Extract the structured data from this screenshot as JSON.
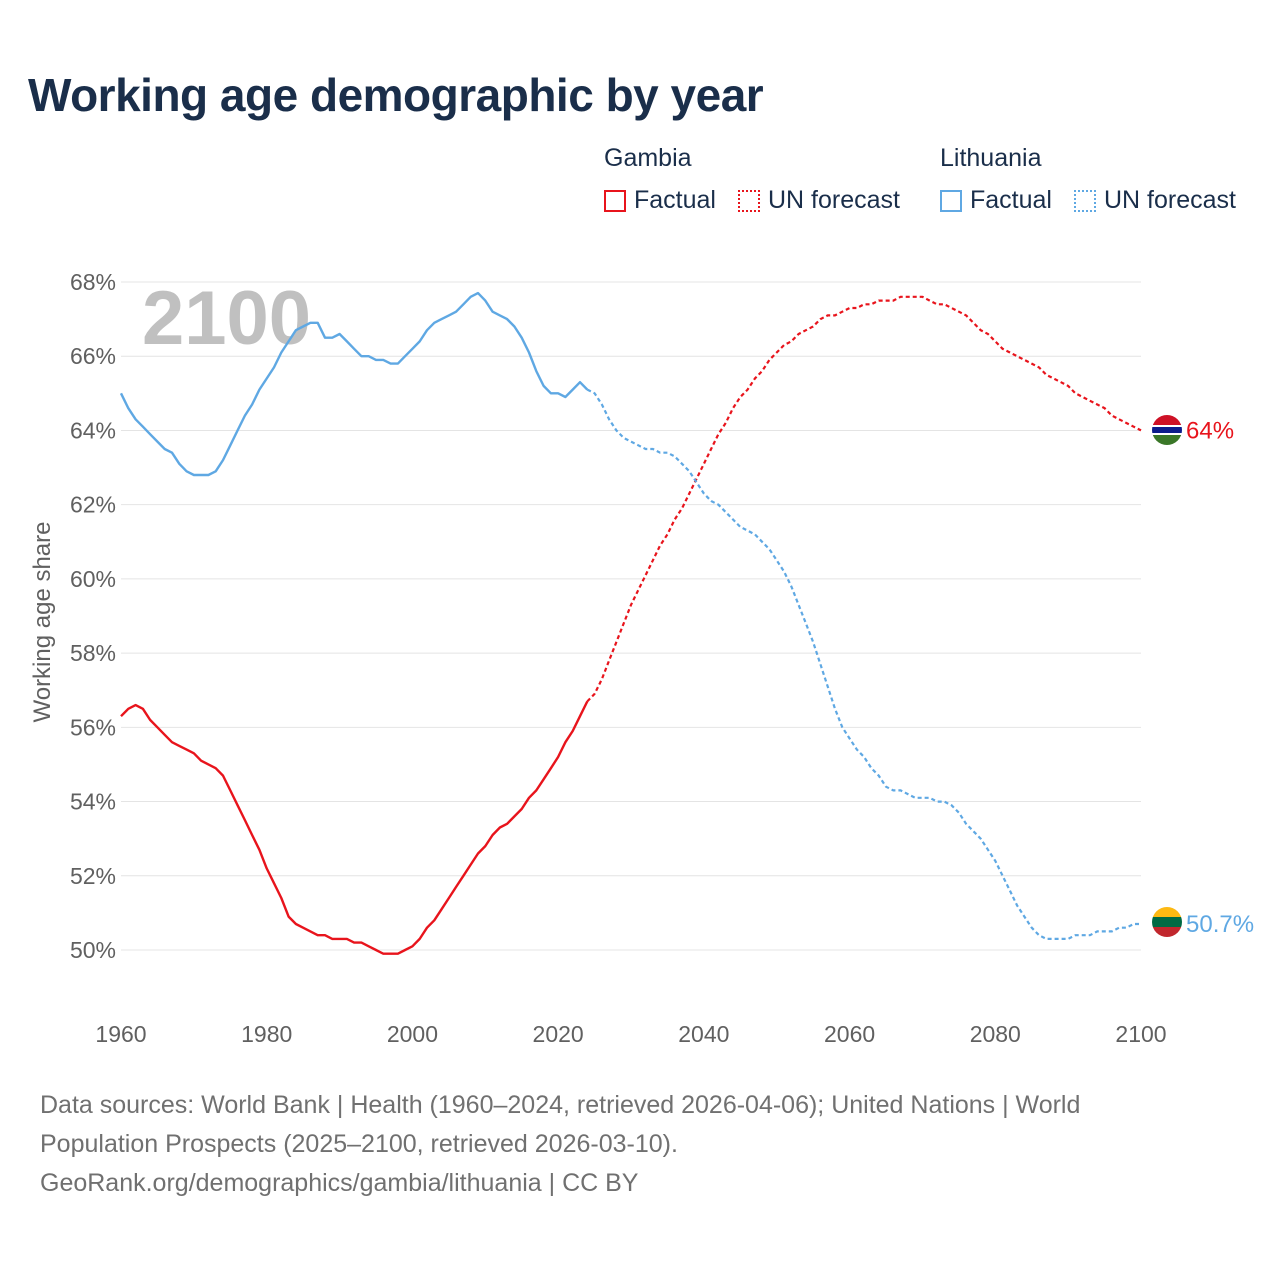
{
  "title": "Working age demographic by year",
  "legend": {
    "groups": [
      {
        "name": "Gambia",
        "factual_label": "Factual",
        "forecast_label": "UN forecast",
        "color": "#e8141c"
      },
      {
        "name": "Lithuania",
        "factual_label": "Factual",
        "forecast_label": "UN forecast",
        "color": "#5fa8e3"
      }
    ]
  },
  "year_watermark": "2100",
  "footer": {
    "sources": "Data sources: World Bank | Health (1960–2024, retrieved 2026-04-06); United Nations | World Population Prospects (2025–2100, retrieved 2026-03-10).",
    "credit": "GeoRank.org/demographics/gambia/lithuania | CC BY"
  },
  "chart_data": {
    "type": "line",
    "title": "Working age demographic by year",
    "xlabel": "",
    "ylabel": "Working age share",
    "xlim": [
      1960,
      2100
    ],
    "ylim": [
      48.5,
      68
    ],
    "x_ticks": [
      1960,
      1980,
      2000,
      2020,
      2040,
      2060,
      2080,
      2100
    ],
    "x_tick_labels": [
      "1960",
      "1980",
      "2000",
      "2020",
      "2040",
      "2060",
      "2080",
      "2100"
    ],
    "y_ticks": [
      50,
      52,
      54,
      56,
      58,
      60,
      62,
      64,
      66,
      68
    ],
    "y_tick_labels": [
      "50%",
      "52%",
      "54%",
      "56%",
      "58%",
      "60%",
      "62%",
      "64%",
      "66%",
      "68%"
    ],
    "grid": true,
    "series": [
      {
        "name": "Gambia",
        "color": "#e8141c",
        "end_label": "64%",
        "flag": "gambia",
        "factual": [
          [
            1960,
            56.3
          ],
          [
            1961,
            56.5
          ],
          [
            1962,
            56.6
          ],
          [
            1963,
            56.5
          ],
          [
            1964,
            56.2
          ],
          [
            1965,
            56.0
          ],
          [
            1966,
            55.8
          ],
          [
            1967,
            55.6
          ],
          [
            1968,
            55.5
          ],
          [
            1969,
            55.4
          ],
          [
            1970,
            55.3
          ],
          [
            1971,
            55.1
          ],
          [
            1972,
            55.0
          ],
          [
            1973,
            54.9
          ],
          [
            1974,
            54.7
          ],
          [
            1975,
            54.3
          ],
          [
            1976,
            53.9
          ],
          [
            1977,
            53.5
          ],
          [
            1978,
            53.1
          ],
          [
            1979,
            52.7
          ],
          [
            1980,
            52.2
          ],
          [
            1981,
            51.8
          ],
          [
            1982,
            51.4
          ],
          [
            1983,
            50.9
          ],
          [
            1984,
            50.7
          ],
          [
            1985,
            50.6
          ],
          [
            1986,
            50.5
          ],
          [
            1987,
            50.4
          ],
          [
            1988,
            50.4
          ],
          [
            1989,
            50.3
          ],
          [
            1990,
            50.3
          ],
          [
            1991,
            50.3
          ],
          [
            1992,
            50.2
          ],
          [
            1993,
            50.2
          ],
          [
            1994,
            50.1
          ],
          [
            1995,
            50.0
          ],
          [
            1996,
            49.9
          ],
          [
            1997,
            49.9
          ],
          [
            1998,
            49.9
          ],
          [
            1999,
            50.0
          ],
          [
            2000,
            50.1
          ],
          [
            2001,
            50.3
          ],
          [
            2002,
            50.6
          ],
          [
            2003,
            50.8
          ],
          [
            2004,
            51.1
          ],
          [
            2005,
            51.4
          ],
          [
            2006,
            51.7
          ],
          [
            2007,
            52.0
          ],
          [
            2008,
            52.3
          ],
          [
            2009,
            52.6
          ],
          [
            2010,
            52.8
          ],
          [
            2011,
            53.1
          ],
          [
            2012,
            53.3
          ],
          [
            2013,
            53.4
          ],
          [
            2014,
            53.6
          ],
          [
            2015,
            53.8
          ],
          [
            2016,
            54.1
          ],
          [
            2017,
            54.3
          ],
          [
            2018,
            54.6
          ],
          [
            2019,
            54.9
          ],
          [
            2020,
            55.2
          ],
          [
            2021,
            55.6
          ],
          [
            2022,
            55.9
          ],
          [
            2023,
            56.3
          ],
          [
            2024,
            56.7
          ]
        ],
        "forecast": [
          [
            2024,
            56.7
          ],
          [
            2025,
            56.9
          ],
          [
            2026,
            57.3
          ],
          [
            2027,
            57.8
          ],
          [
            2028,
            58.3
          ],
          [
            2029,
            58.8
          ],
          [
            2030,
            59.3
          ],
          [
            2031,
            59.7
          ],
          [
            2032,
            60.1
          ],
          [
            2033,
            60.5
          ],
          [
            2034,
            60.9
          ],
          [
            2035,
            61.2
          ],
          [
            2036,
            61.6
          ],
          [
            2037,
            61.9
          ],
          [
            2038,
            62.3
          ],
          [
            2039,
            62.7
          ],
          [
            2040,
            63.1
          ],
          [
            2041,
            63.5
          ],
          [
            2042,
            63.9
          ],
          [
            2043,
            64.2
          ],
          [
            2044,
            64.6
          ],
          [
            2045,
            64.9
          ],
          [
            2046,
            65.1
          ],
          [
            2047,
            65.4
          ],
          [
            2048,
            65.6
          ],
          [
            2049,
            65.9
          ],
          [
            2050,
            66.1
          ],
          [
            2051,
            66.3
          ],
          [
            2052,
            66.4
          ],
          [
            2053,
            66.6
          ],
          [
            2054,
            66.7
          ],
          [
            2055,
            66.8
          ],
          [
            2056,
            67.0
          ],
          [
            2057,
            67.1
          ],
          [
            2058,
            67.1
          ],
          [
            2059,
            67.2
          ],
          [
            2060,
            67.3
          ],
          [
            2061,
            67.3
          ],
          [
            2062,
            67.4
          ],
          [
            2063,
            67.4
          ],
          [
            2064,
            67.5
          ],
          [
            2065,
            67.5
          ],
          [
            2066,
            67.5
          ],
          [
            2067,
            67.6
          ],
          [
            2068,
            67.6
          ],
          [
            2069,
            67.6
          ],
          [
            2070,
            67.6
          ],
          [
            2071,
            67.5
          ],
          [
            2072,
            67.4
          ],
          [
            2073,
            67.4
          ],
          [
            2074,
            67.3
          ],
          [
            2075,
            67.2
          ],
          [
            2076,
            67.1
          ],
          [
            2077,
            66.9
          ],
          [
            2078,
            66.7
          ],
          [
            2079,
            66.6
          ],
          [
            2080,
            66.4
          ],
          [
            2081,
            66.2
          ],
          [
            2082,
            66.1
          ],
          [
            2083,
            66.0
          ],
          [
            2084,
            65.9
          ],
          [
            2085,
            65.8
          ],
          [
            2086,
            65.7
          ],
          [
            2087,
            65.5
          ],
          [
            2088,
            65.4
          ],
          [
            2089,
            65.3
          ],
          [
            2090,
            65.2
          ],
          [
            2091,
            65.0
          ],
          [
            2092,
            64.9
          ],
          [
            2093,
            64.8
          ],
          [
            2094,
            64.7
          ],
          [
            2095,
            64.6
          ],
          [
            2096,
            64.4
          ],
          [
            2097,
            64.3
          ],
          [
            2098,
            64.2
          ],
          [
            2099,
            64.1
          ],
          [
            2100,
            64.0
          ]
        ]
      },
      {
        "name": "Lithuania",
        "color": "#5fa8e3",
        "end_label": "50.7%",
        "flag": "lithuania",
        "factual": [
          [
            1960,
            65.0
          ],
          [
            1961,
            64.6
          ],
          [
            1962,
            64.3
          ],
          [
            1963,
            64.1
          ],
          [
            1964,
            63.9
          ],
          [
            1965,
            63.7
          ],
          [
            1966,
            63.5
          ],
          [
            1967,
            63.4
          ],
          [
            1968,
            63.1
          ],
          [
            1969,
            62.9
          ],
          [
            1970,
            62.8
          ],
          [
            1971,
            62.8
          ],
          [
            1972,
            62.8
          ],
          [
            1973,
            62.9
          ],
          [
            1974,
            63.2
          ],
          [
            1975,
            63.6
          ],
          [
            1976,
            64.0
          ],
          [
            1977,
            64.4
          ],
          [
            1978,
            64.7
          ],
          [
            1979,
            65.1
          ],
          [
            1980,
            65.4
          ],
          [
            1981,
            65.7
          ],
          [
            1982,
            66.1
          ],
          [
            1983,
            66.4
          ],
          [
            1984,
            66.7
          ],
          [
            1985,
            66.8
          ],
          [
            1986,
            66.9
          ],
          [
            1987,
            66.9
          ],
          [
            1988,
            66.5
          ],
          [
            1989,
            66.5
          ],
          [
            1990,
            66.6
          ],
          [
            1991,
            66.4
          ],
          [
            1992,
            66.2
          ],
          [
            1993,
            66.0
          ],
          [
            1994,
            66.0
          ],
          [
            1995,
            65.9
          ],
          [
            1996,
            65.9
          ],
          [
            1997,
            65.8
          ],
          [
            1998,
            65.8
          ],
          [
            1999,
            66.0
          ],
          [
            2000,
            66.2
          ],
          [
            2001,
            66.4
          ],
          [
            2002,
            66.7
          ],
          [
            2003,
            66.9
          ],
          [
            2004,
            67.0
          ],
          [
            2005,
            67.1
          ],
          [
            2006,
            67.2
          ],
          [
            2007,
            67.4
          ],
          [
            2008,
            67.6
          ],
          [
            2009,
            67.7
          ],
          [
            2010,
            67.5
          ],
          [
            2011,
            67.2
          ],
          [
            2012,
            67.1
          ],
          [
            2013,
            67.0
          ],
          [
            2014,
            66.8
          ],
          [
            2015,
            66.5
          ],
          [
            2016,
            66.1
          ],
          [
            2017,
            65.6
          ],
          [
            2018,
            65.2
          ],
          [
            2019,
            65.0
          ],
          [
            2020,
            65.0
          ],
          [
            2021,
            64.9
          ],
          [
            2022,
            65.1
          ],
          [
            2023,
            65.3
          ],
          [
            2024,
            65.1
          ]
        ],
        "forecast": [
          [
            2024,
            65.1
          ],
          [
            2025,
            65.0
          ],
          [
            2026,
            64.7
          ],
          [
            2027,
            64.3
          ],
          [
            2028,
            64.0
          ],
          [
            2029,
            63.8
          ],
          [
            2030,
            63.7
          ],
          [
            2031,
            63.6
          ],
          [
            2032,
            63.5
          ],
          [
            2033,
            63.5
          ],
          [
            2034,
            63.4
          ],
          [
            2035,
            63.4
          ],
          [
            2036,
            63.3
          ],
          [
            2037,
            63.1
          ],
          [
            2038,
            62.9
          ],
          [
            2039,
            62.6
          ],
          [
            2040,
            62.3
          ],
          [
            2041,
            62.1
          ],
          [
            2042,
            62.0
          ],
          [
            2043,
            61.8
          ],
          [
            2044,
            61.6
          ],
          [
            2045,
            61.4
          ],
          [
            2046,
            61.3
          ],
          [
            2047,
            61.2
          ],
          [
            2048,
            61.0
          ],
          [
            2049,
            60.8
          ],
          [
            2050,
            60.5
          ],
          [
            2051,
            60.2
          ],
          [
            2052,
            59.8
          ],
          [
            2053,
            59.3
          ],
          [
            2054,
            58.8
          ],
          [
            2055,
            58.3
          ],
          [
            2056,
            57.7
          ],
          [
            2057,
            57.1
          ],
          [
            2058,
            56.5
          ],
          [
            2059,
            56.0
          ],
          [
            2060,
            55.7
          ],
          [
            2061,
            55.4
          ],
          [
            2062,
            55.2
          ],
          [
            2063,
            54.9
          ],
          [
            2064,
            54.7
          ],
          [
            2065,
            54.4
          ],
          [
            2066,
            54.3
          ],
          [
            2067,
            54.3
          ],
          [
            2068,
            54.2
          ],
          [
            2069,
            54.1
          ],
          [
            2070,
            54.1
          ],
          [
            2071,
            54.1
          ],
          [
            2072,
            54.0
          ],
          [
            2073,
            54.0
          ],
          [
            2074,
            53.9
          ],
          [
            2075,
            53.7
          ],
          [
            2076,
            53.4
          ],
          [
            2077,
            53.2
          ],
          [
            2078,
            53.0
          ],
          [
            2079,
            52.7
          ],
          [
            2080,
            52.4
          ],
          [
            2081,
            52.0
          ],
          [
            2082,
            51.6
          ],
          [
            2083,
            51.2
          ],
          [
            2084,
            50.9
          ],
          [
            2085,
            50.6
          ],
          [
            2086,
            50.4
          ],
          [
            2087,
            50.3
          ],
          [
            2088,
            50.3
          ],
          [
            2089,
            50.3
          ],
          [
            2090,
            50.3
          ],
          [
            2091,
            50.4
          ],
          [
            2092,
            50.4
          ],
          [
            2093,
            50.4
          ],
          [
            2094,
            50.5
          ],
          [
            2095,
            50.5
          ],
          [
            2096,
            50.5
          ],
          [
            2097,
            50.6
          ],
          [
            2098,
            50.6
          ],
          [
            2099,
            50.7
          ],
          [
            2100,
            50.7
          ]
        ]
      }
    ]
  }
}
